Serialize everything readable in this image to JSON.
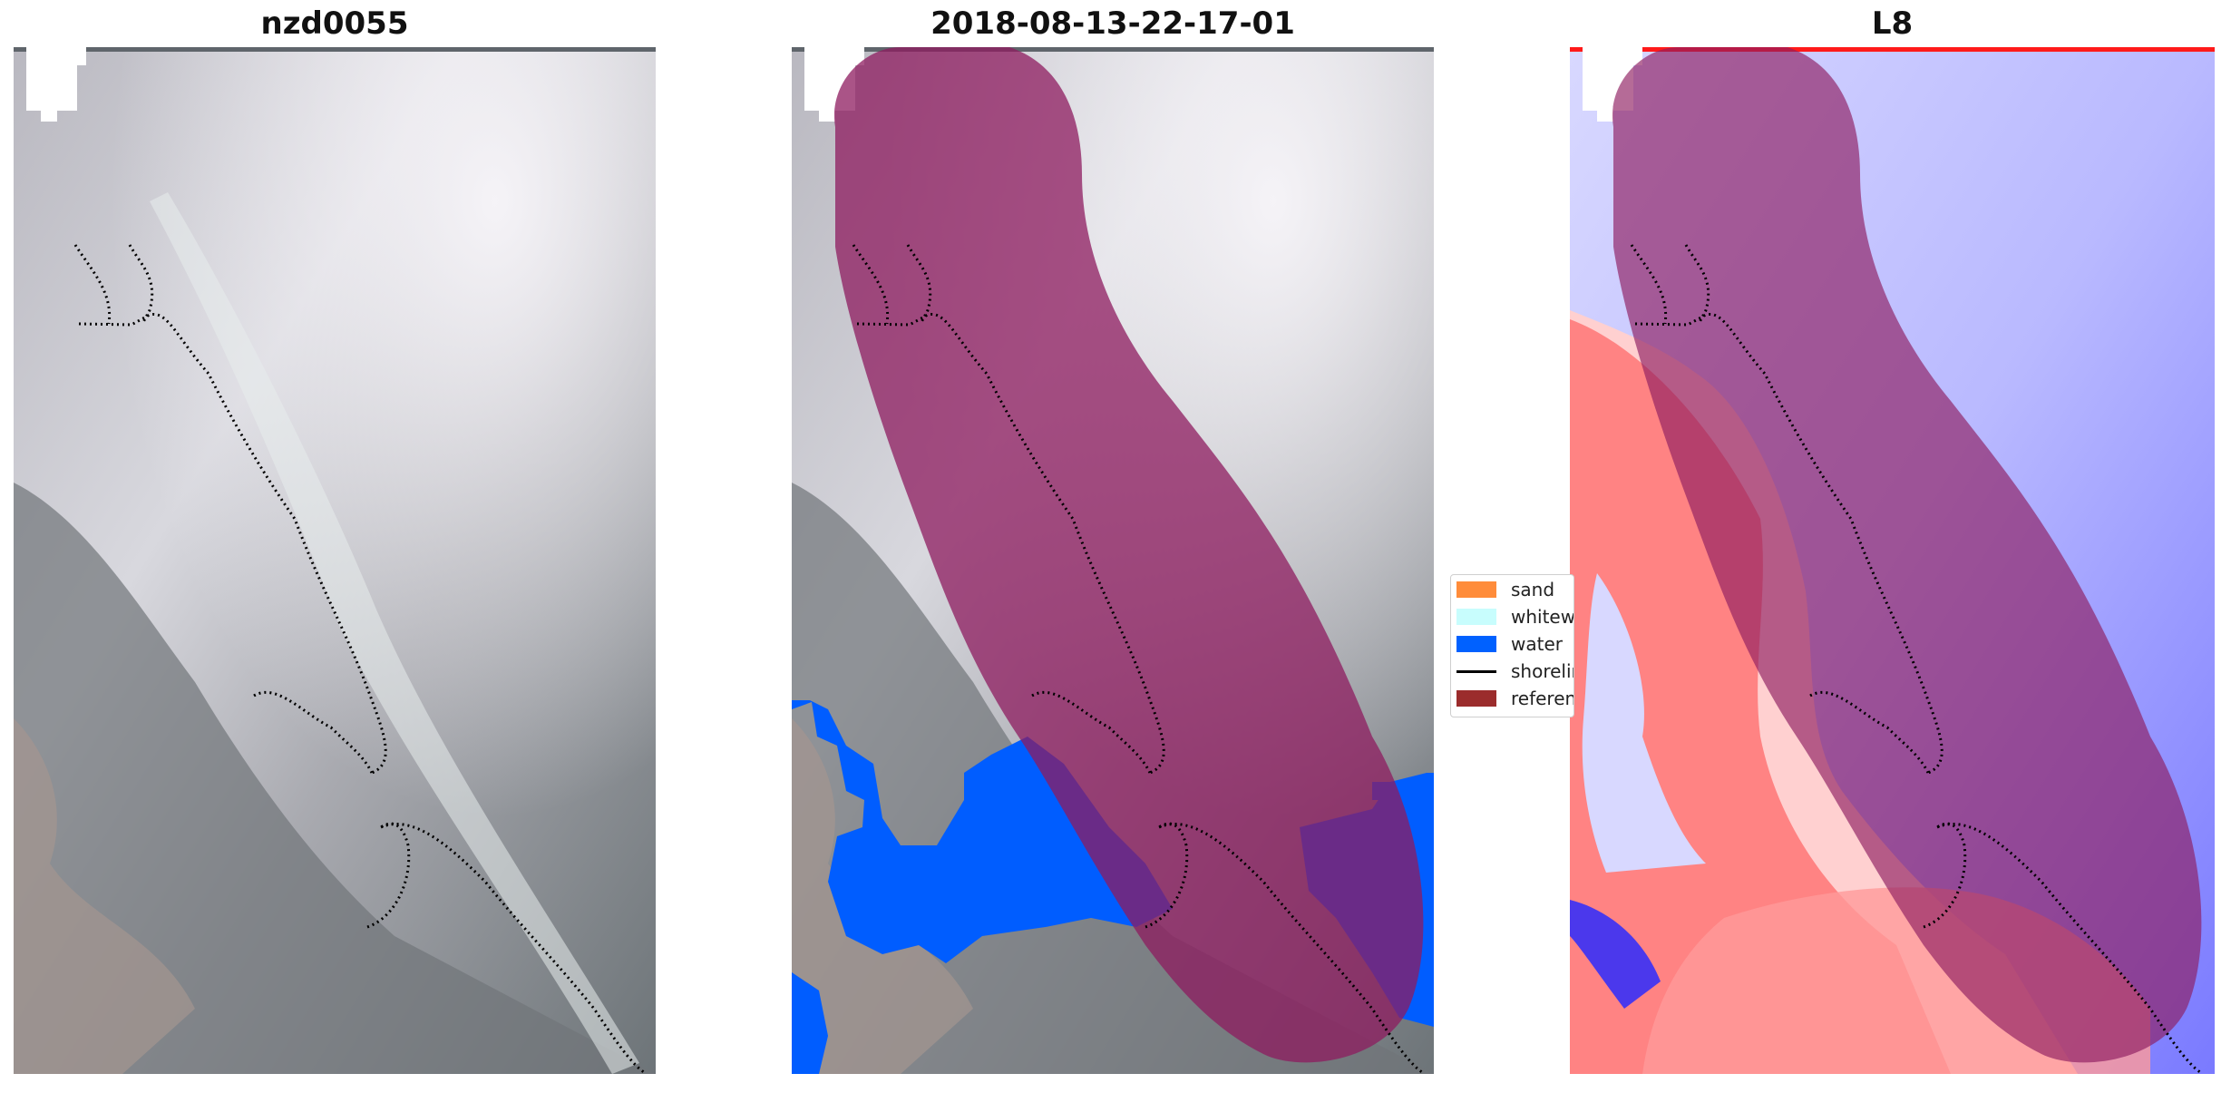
{
  "panels": [
    {
      "title": "nzd0055"
    },
    {
      "title": "2018-08-13-22-17-01"
    },
    {
      "title": "L8"
    }
  ],
  "legend": {
    "items": [
      {
        "label": "sand",
        "color": "#ff8c3a",
        "kind": "patch"
      },
      {
        "label": "whitewater",
        "color": "#c8fdfd",
        "kind": "patch"
      },
      {
        "label": "water",
        "color": "#0061ff",
        "kind": "patch"
      },
      {
        "label": "shoreline",
        "color": "#000000",
        "kind": "line"
      },
      {
        "label": "reference shoreline buffer",
        "color": "#9b2c2c",
        "kind": "patch"
      }
    ]
  },
  "colors": {
    "buffer_overlay": "#8e1b5f",
    "water_class": "#005dff",
    "index_positive": "#ff2a2a",
    "index_negative": "#2b2bff"
  }
}
